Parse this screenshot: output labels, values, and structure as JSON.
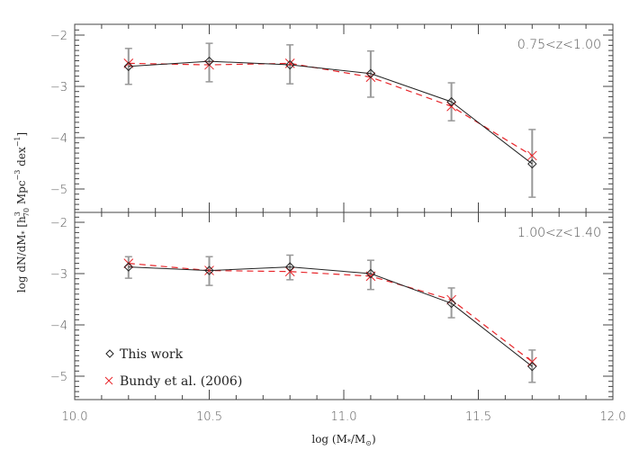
{
  "chart_data": {
    "type": "line",
    "xlabel": "log (M*/M⊙)",
    "ylabel": "log dN/dM* [h70^3 Mpc^-3 dex^-1]",
    "xlim": [
      10.0,
      12.0
    ],
    "x_ticks": [
      "10.0",
      "10.5",
      "11.0",
      "11.5",
      "12.0"
    ],
    "legend": {
      "position": "lower left of bottom panel",
      "entries": [
        {
          "label": "This work",
          "marker": "diamond",
          "color": "#222222"
        },
        {
          "label": "Bundy et al. (2006)",
          "marker": "x",
          "color": "#e8262b"
        }
      ]
    },
    "panels": [
      {
        "label": "0.75<z<1.00",
        "ylim": [
          -5.45,
          -1.79
        ],
        "y_ticks": [
          "-2",
          "-3",
          "-4",
          "-5"
        ],
        "x": [
          10.2,
          10.5,
          10.8,
          11.1,
          11.4,
          11.7
        ],
        "series": [
          {
            "name": "This work",
            "style": "solid",
            "color": "#222222",
            "values": [
              -2.61,
              -2.51,
              -2.58,
              -2.75,
              -3.3,
              -4.51
            ],
            "err_low": [
              -2.96,
              -2.91,
              -2.95,
              -3.21,
              -3.67,
              -5.16
            ],
            "err_high": [
              -2.26,
              -2.16,
              -2.19,
              -2.31,
              -2.93,
              -3.84
            ]
          },
          {
            "name": "Bundy et al. (2006)",
            "style": "dashed",
            "color": "#e8262b",
            "values": [
              -2.55,
              -2.58,
              -2.55,
              -2.82,
              -3.39,
              -4.35
            ]
          }
        ]
      },
      {
        "label": "1.00<z<1.40",
        "ylim": [
          -5.47,
          -1.81
        ],
        "y_ticks": [
          "-2",
          "-3",
          "-4",
          "-5"
        ],
        "x": [
          10.2,
          10.5,
          10.8,
          11.1,
          11.4,
          11.7
        ],
        "series": [
          {
            "name": "This work",
            "style": "solid",
            "color": "#222222",
            "values": [
              -2.87,
              -2.94,
              -2.87,
              -3.0,
              -3.58,
              -4.81
            ],
            "err_low": [
              -3.09,
              -3.23,
              -3.12,
              -3.31,
              -3.86,
              -5.12
            ],
            "err_high": [
              -2.67,
              -2.67,
              -2.64,
              -2.74,
              -3.28,
              -4.49
            ]
          },
          {
            "name": "Bundy et al. (2006)",
            "style": "dashed",
            "color": "#e8262b",
            "values": [
              -2.8,
              -2.94,
              -2.96,
              -3.05,
              -3.51,
              -4.72
            ]
          }
        ]
      }
    ]
  },
  "labels": {
    "xlabel_main": "log (M",
    "xlabel_star": "*",
    "xlabel_mid": "/M",
    "xlabel_sun": "⊙",
    "xlabel_end": ")",
    "ylabel_a": "log dN/dM",
    "ylabel_star": "*",
    "ylabel_b": " [h",
    "ylabel_sup3": "3",
    "ylabel_sub70": "70",
    "ylabel_c": " Mpc",
    "ylabel_sup_m3": "−3",
    "ylabel_d": " dex",
    "ylabel_sup_m1": "−1",
    "ylabel_e": "]"
  },
  "colors": {
    "axis": "#444444",
    "this_work": "#222222",
    "bundy": "#e8262b",
    "errorbar": "#999999"
  }
}
